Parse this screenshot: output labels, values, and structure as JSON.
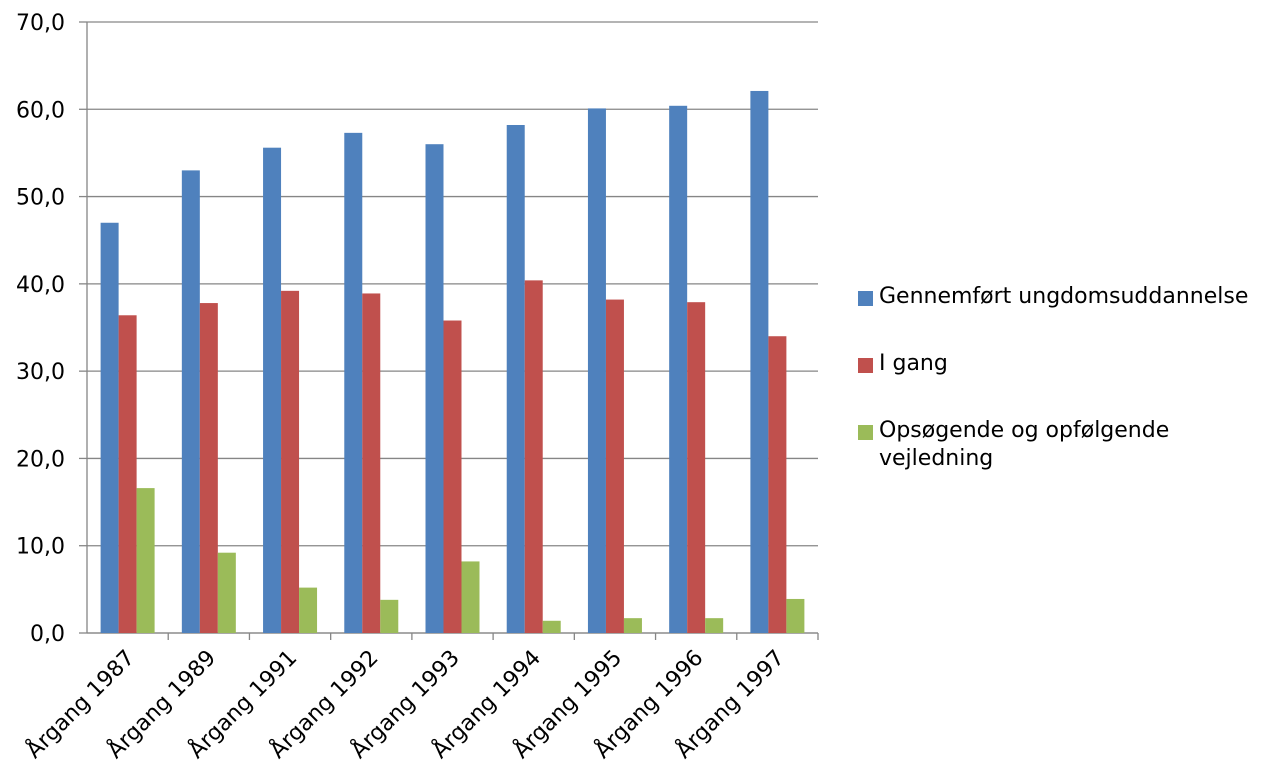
{
  "chart_data": {
    "type": "bar",
    "title": "",
    "xlabel": "",
    "ylabel": "",
    "ylim": [
      0,
      70
    ],
    "ytick_step": 10,
    "yticks": [
      "0,0",
      "10,0",
      "20,0",
      "30,0",
      "40,0",
      "50,0",
      "60,0",
      "70,0"
    ],
    "grid": true,
    "legend_position": "right",
    "categories": [
      "Årgang 1987",
      "Årgang 1989",
      "Årgang 1991",
      "Årgang 1992",
      "Årgang 1993",
      "Årgang 1994",
      "Årgang 1995",
      "Årgang 1996",
      "Årgang 1997"
    ],
    "series": [
      {
        "name": "Gennemført ungdomsuddannelse",
        "color": "#4F81BD",
        "values": [
          47.0,
          53.0,
          55.6,
          57.3,
          56.0,
          58.2,
          60.1,
          60.4,
          62.1
        ]
      },
      {
        "name": "I gang",
        "color": "#C0504D",
        "values": [
          36.4,
          37.8,
          39.2,
          38.9,
          35.8,
          40.4,
          38.2,
          37.9,
          34.0
        ]
      },
      {
        "name": "Opsøgende og opfølgende vejledning",
        "color": "#9BBB59",
        "values": [
          16.6,
          9.2,
          5.2,
          3.8,
          8.2,
          1.4,
          1.7,
          1.7,
          3.9
        ]
      }
    ]
  }
}
